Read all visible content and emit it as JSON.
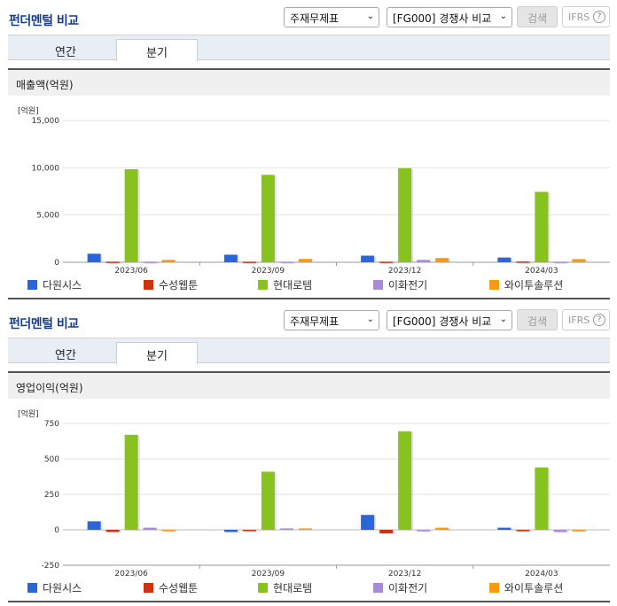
{
  "panels": [
    {
      "title": "펀더멘털 비교",
      "select1": "주재무제표",
      "select2": "[FG000] 경쟁사 비교",
      "search_label": "검색",
      "ifrs_label": "IFRS",
      "ifrs_help": "?",
      "tabs": [
        {
          "label": "연간"
        },
        {
          "label": "분기"
        }
      ],
      "active_tab": "분기",
      "section_title": "매출액(억원)",
      "unit_label": "[억원]"
    },
    {
      "title": "펀더멘털 비교",
      "select1": "주재무제표",
      "select2": "[FG000] 경쟁사 비교",
      "search_label": "검색",
      "ifrs_label": "IFRS",
      "ifrs_help": "?",
      "tabs": [
        {
          "label": "연간"
        },
        {
          "label": "분기"
        }
      ],
      "active_tab": "분기",
      "section_title": "영업이익(억원)",
      "unit_label": "[억원]"
    }
  ],
  "colors": {
    "다원시스": "#2a66d9",
    "수성웹툰": "#cc3311",
    "현대로템": "#88c21f",
    "이화전기": "#a98ad9",
    "와이투솔루션": "#f59a12"
  },
  "chart_data": [
    {
      "type": "bar",
      "title": "매출액(억원)",
      "ylabel": "[억원]",
      "categories": [
        "2023/06",
        "2023/09",
        "2023/12",
        "2024/03"
      ],
      "ylim": [
        0,
        15000
      ],
      "yticks": [
        "0",
        "5,000",
        "10,000",
        "15,000"
      ],
      "ytick_values": [
        0,
        5000,
        10000,
        15000
      ],
      "legend_position": "bottom",
      "series": [
        {
          "name": "다원시스",
          "values": [
            900,
            800,
            700,
            500
          ]
        },
        {
          "name": "수성웹툰",
          "values": [
            60,
            60,
            60,
            80
          ]
        },
        {
          "name": "현대로템",
          "values": [
            9850,
            9250,
            9950,
            7450
          ]
        },
        {
          "name": "이화전기",
          "values": [
            60,
            60,
            250,
            60
          ]
        },
        {
          "name": "와이투솔루션",
          "values": [
            250,
            350,
            450,
            330
          ]
        }
      ]
    },
    {
      "type": "bar",
      "title": "영업이익(억원)",
      "ylabel": "[억원]",
      "categories": [
        "2023/06",
        "2023/09",
        "2023/12",
        "2024/03"
      ],
      "ylim": [
        -250,
        750
      ],
      "yticks": [
        "-250",
        "0",
        "250",
        "500",
        "750"
      ],
      "ytick_values": [
        -250,
        0,
        250,
        500,
        750
      ],
      "legend_position": "bottom",
      "series": [
        {
          "name": "다원시스",
          "values": [
            60,
            -15,
            105,
            15
          ]
        },
        {
          "name": "수성웹툰",
          "values": [
            -15,
            0,
            -25,
            -10
          ]
        },
        {
          "name": "현대로템",
          "values": [
            670,
            410,
            695,
            440
          ]
        },
        {
          "name": "이화전기",
          "values": [
            15,
            10,
            -10,
            -15
          ]
        },
        {
          "name": "와이투솔루션",
          "values": [
            0,
            10,
            15,
            -10
          ]
        }
      ]
    }
  ]
}
